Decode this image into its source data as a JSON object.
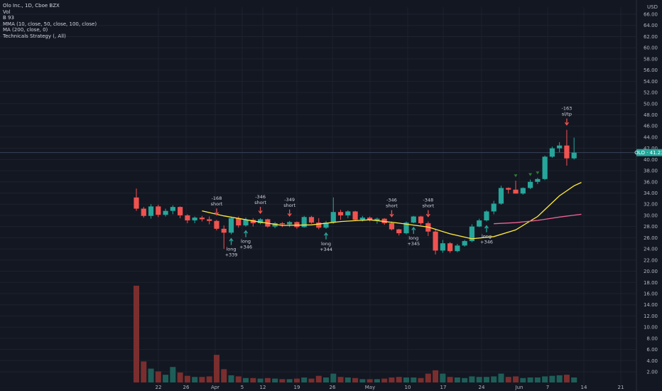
{
  "legend": {
    "title": "Olo Inc., 1D, Cboe BZX",
    "vol": "Vol",
    "b": "B 93",
    "mma": "MMA (10, close, 50, close, 100, close)",
    "ma": "MA (200, close, 0)",
    "strategy": "Technicals Strategy (, All)"
  },
  "currency": "USD",
  "price_tag": "OLO · 41.23",
  "colors": {
    "up": "#26a69a",
    "down": "#ef5350",
    "vol_up": "#1e5e58",
    "vol_down": "#7a2e2e",
    "ma_fast": "#ffeb3b",
    "ma_slow": "#f06292",
    "last": "#26a69a"
  },
  "chart_data": {
    "type": "candlestick",
    "y_ticks": [
      "2.00",
      "4.00",
      "6.00",
      "8.00",
      "10.00",
      "12.00",
      "14.00",
      "16.00",
      "18.00",
      "20.00",
      "22.00",
      "24.00",
      "26.00",
      "28.00",
      "30.00",
      "32.00",
      "34.00",
      "36.00",
      "38.00",
      "40.00",
      "42.00",
      "44.00",
      "46.00",
      "48.00",
      "50.00",
      "52.00",
      "54.00",
      "56.00",
      "58.00",
      "60.00",
      "62.00",
      "64.00",
      "66.00"
    ],
    "x_ticks": [
      "22",
      "26",
      "Apr",
      "5",
      "12",
      "19",
      "26",
      "May",
      "10",
      "17",
      "24",
      "Jun",
      "7",
      "14",
      "21"
    ],
    "last_price": 41.23,
    "candles": [
      [
        33.2,
        34.8,
        30.8,
        31.2,
        17.5
      ],
      [
        31.2,
        31.5,
        29.6,
        29.9,
        3.8
      ],
      [
        29.9,
        32.0,
        29.4,
        31.6,
        2.5
      ],
      [
        31.6,
        31.9,
        29.7,
        30.1,
        2.0
      ],
      [
        30.1,
        31.2,
        29.8,
        30.8,
        1.4
      ],
      [
        30.8,
        31.8,
        30.2,
        31.5,
        2.8
      ],
      [
        31.5,
        31.6,
        29.5,
        30.0,
        1.8
      ],
      [
        30.0,
        30.2,
        28.6,
        29.1,
        1.2
      ],
      [
        29.1,
        29.8,
        28.6,
        29.6,
        1.0
      ],
      [
        29.6,
        29.9,
        28.9,
        29.3,
        1.0
      ],
      [
        29.3,
        29.8,
        28.4,
        29.0,
        1.1
      ],
      [
        29.0,
        29.2,
        27.3,
        27.6,
        5.0
      ],
      [
        27.6,
        28.2,
        24.0,
        26.9,
        2.4
      ],
      [
        26.9,
        29.8,
        26.6,
        29.5,
        1.3
      ],
      [
        29.5,
        29.8,
        27.8,
        28.2,
        1.1
      ],
      [
        28.2,
        29.6,
        28.0,
        29.2,
        0.8
      ],
      [
        29.2,
        29.5,
        28.0,
        28.6,
        0.8
      ],
      [
        28.6,
        29.5,
        28.4,
        29.3,
        0.7
      ],
      [
        29.3,
        29.4,
        27.8,
        28.0,
        0.8
      ],
      [
        28.0,
        28.8,
        27.7,
        28.6,
        0.7
      ],
      [
        28.6,
        28.8,
        27.9,
        28.4,
        0.6
      ],
      [
        28.4,
        29.0,
        27.9,
        28.8,
        0.6
      ],
      [
        28.8,
        28.9,
        27.6,
        27.9,
        0.7
      ],
      [
        27.9,
        29.9,
        27.8,
        29.7,
        0.9
      ],
      [
        29.7,
        29.9,
        28.5,
        28.7,
        0.7
      ],
      [
        28.7,
        29.5,
        27.5,
        27.8,
        1.2
      ],
      [
        27.8,
        29.0,
        27.6,
        28.7,
        0.9
      ],
      [
        28.7,
        33.2,
        28.5,
        30.6,
        1.6
      ],
      [
        30.6,
        31.0,
        29.2,
        30.0,
        1.0
      ],
      [
        30.0,
        30.9,
        29.5,
        30.7,
        0.9
      ],
      [
        30.7,
        30.8,
        29.1,
        29.2,
        0.8
      ],
      [
        29.2,
        29.9,
        28.9,
        29.6,
        0.6
      ],
      [
        29.6,
        29.8,
        28.9,
        29.1,
        0.6
      ],
      [
        29.1,
        29.6,
        28.5,
        29.4,
        0.6
      ],
      [
        29.4,
        29.5,
        28.3,
        28.6,
        0.7
      ],
      [
        28.6,
        28.9,
        27.3,
        27.5,
        0.9
      ],
      [
        27.5,
        27.6,
        26.4,
        26.8,
        1.0
      ],
      [
        26.8,
        28.9,
        26.6,
        28.7,
        0.9
      ],
      [
        28.7,
        29.9,
        28.6,
        29.8,
        0.9
      ],
      [
        29.8,
        29.9,
        28.3,
        28.6,
        0.8
      ],
      [
        28.6,
        28.9,
        26.3,
        27.1,
        1.6
      ],
      [
        27.1,
        27.6,
        23.0,
        23.7,
        2.2
      ],
      [
        23.7,
        25.6,
        23.3,
        25.0,
        1.6
      ],
      [
        25.0,
        25.2,
        23.3,
        23.6,
        1.0
      ],
      [
        23.6,
        24.9,
        23.4,
        24.6,
        0.9
      ],
      [
        24.6,
        25.6,
        24.4,
        25.4,
        0.8
      ],
      [
        25.4,
        28.4,
        25.2,
        28.0,
        1.1
      ],
      [
        28.0,
        29.4,
        27.9,
        29.1,
        1.0
      ],
      [
        29.1,
        30.9,
        28.9,
        30.7,
        1.0
      ],
      [
        30.7,
        32.6,
        30.2,
        32.1,
        1.1
      ],
      [
        32.1,
        35.3,
        31.9,
        34.9,
        1.6
      ],
      [
        34.9,
        35.0,
        33.9,
        34.6,
        1.0
      ],
      [
        34.6,
        36.2,
        33.9,
        33.9,
        1.1
      ],
      [
        33.9,
        35.0,
        33.7,
        34.9,
        0.8
      ],
      [
        34.9,
        36.4,
        34.7,
        36.0,
        0.9
      ],
      [
        36.0,
        36.7,
        35.6,
        36.5,
        0.9
      ],
      [
        36.5,
        40.7,
        36.3,
        40.5,
        1.1
      ],
      [
        40.5,
        42.3,
        40.3,
        42.0,
        1.2
      ],
      [
        42.0,
        43.1,
        41.3,
        42.5,
        1.3
      ],
      [
        42.5,
        45.3,
        38.9,
        40.2,
        1.4
      ],
      [
        40.2,
        43.9,
        40.0,
        41.23,
        0.9
      ]
    ],
    "ma_fast": [
      [
        9,
        30.8
      ],
      [
        12,
        29.9
      ],
      [
        16,
        29.0
      ],
      [
        20,
        28.2
      ],
      [
        24,
        28.3
      ],
      [
        28,
        28.9
      ],
      [
        32,
        29.2
      ],
      [
        36,
        28.6
      ],
      [
        40,
        27.9
      ],
      [
        43,
        26.7
      ],
      [
        46,
        25.8
      ],
      [
        49,
        26.2
      ],
      [
        52,
        27.4
      ],
      [
        55,
        29.8
      ],
      [
        58,
        33.5
      ],
      [
        60,
        35.3
      ],
      [
        61,
        35.9
      ]
    ],
    "ma_slow": [
      [
        49,
        28.5
      ],
      [
        52,
        28.7
      ],
      [
        55,
        29.1
      ],
      [
        58,
        29.7
      ],
      [
        61,
        30.2
      ]
    ],
    "annotations": [
      {
        "i": 11,
        "text": "-168",
        "text2": "short",
        "kind": "short"
      },
      {
        "i": 17,
        "text": "-346",
        "text2": "short",
        "kind": "short"
      },
      {
        "i": 21,
        "text": "-349",
        "text2": "short",
        "kind": "short"
      },
      {
        "i": 35,
        "text": "-346",
        "text2": "short",
        "kind": "short"
      },
      {
        "i": 40,
        "text": "-348",
        "text2": "short",
        "kind": "short"
      },
      {
        "i": 59,
        "text": "-163",
        "text2": "sl/tp",
        "kind": "short"
      },
      {
        "i": 13,
        "text": "long",
        "text2": "+339",
        "kind": "long"
      },
      {
        "i": 15,
        "text": "long",
        "text2": "+346",
        "kind": "long"
      },
      {
        "i": 26,
        "text": "long",
        "text2": "+344",
        "kind": "long"
      },
      {
        "i": 38,
        "text": "long",
        "text2": "+345",
        "kind": "long"
      },
      {
        "i": 48,
        "text": "long",
        "text2": "+346",
        "kind": "long"
      }
    ]
  }
}
